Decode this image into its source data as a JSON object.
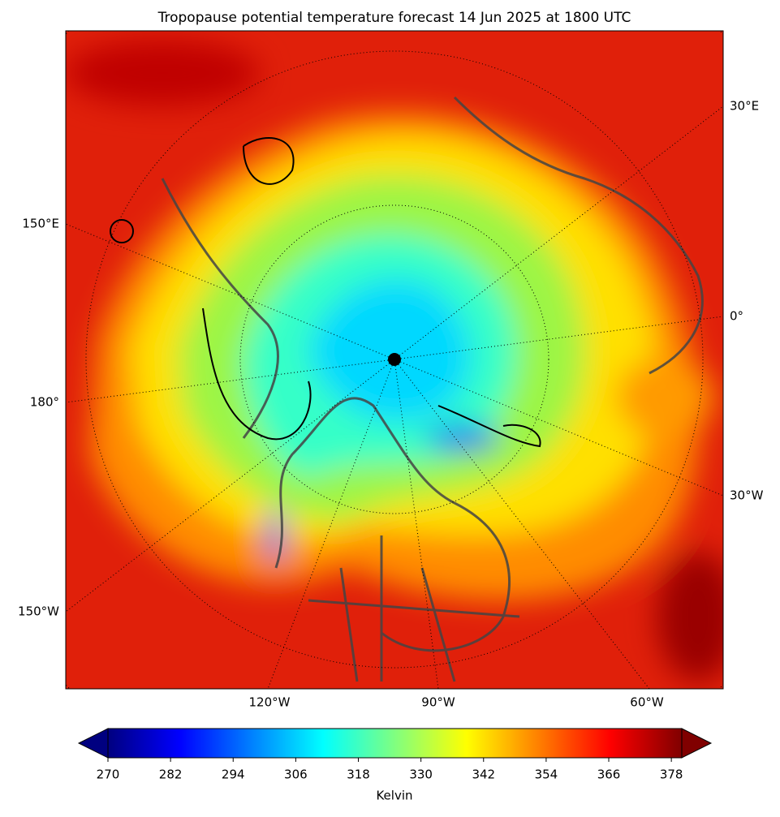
{
  "title": "Tropopause potential temperature forecast 14 Jun 2025 at 1800 UTC",
  "map": {
    "lon_labels_right": [
      "30°E",
      "0°",
      "30°W"
    ],
    "lon_labels_left": [
      "150°E",
      "180°",
      "150°W"
    ],
    "lon_labels_bottom": [
      "120°W",
      "90°W",
      "60°W"
    ]
  },
  "colorbar": {
    "label": "Kelvin",
    "lim": [
      270,
      380
    ],
    "ticks": [
      270,
      282,
      294,
      306,
      318,
      330,
      342,
      354,
      366,
      378
    ],
    "cmap": "jet",
    "extend": "both"
  }
}
